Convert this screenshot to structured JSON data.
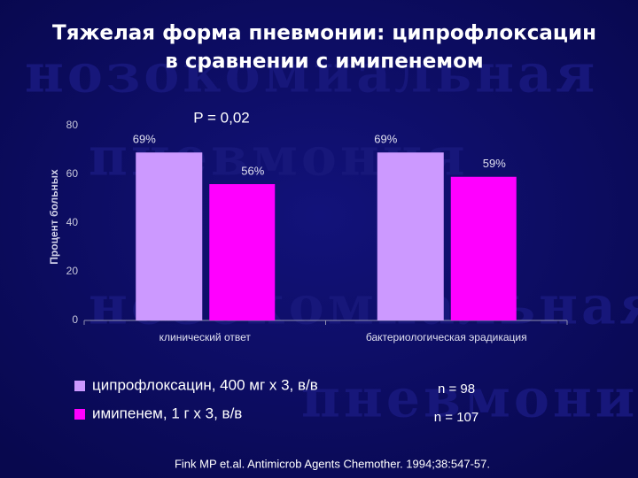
{
  "watermark": [
    "нозокомиальная",
    "пневмония",
    "нозокомиальная",
    "пневмония"
  ],
  "chart_data": {
    "type": "bar",
    "title": [
      "Тяжелая форма пневмонии: ципрофлоксацин",
      "в сравнении с имипенемом"
    ],
    "y_label": "Процент больных",
    "annotation": "P = 0,02",
    "categories": [
      "клинический ответ",
      "бактериологическая эрадикация"
    ],
    "series": [
      {
        "name": "ципрофлоксацин, 400 мг х 3, в/в",
        "color": "#cc99ff",
        "values": [
          69,
          69
        ],
        "value_labels": [
          "69%",
          "69%"
        ],
        "n_label": "n = 98"
      },
      {
        "name": "имипенем, 1 г х 3, в/в",
        "color": "#ff00ff",
        "values": [
          56,
          59
        ],
        "value_labels": [
          "56%",
          "59%"
        ],
        "n_label": "n = 107"
      }
    ],
    "ylim": [
      0,
      80
    ],
    "yticks": [
      0,
      20,
      40,
      60,
      80
    ],
    "grid": false,
    "source": "Fink MP et.al. Antimicrob Agents Chemother. 1994;38:547-57."
  }
}
